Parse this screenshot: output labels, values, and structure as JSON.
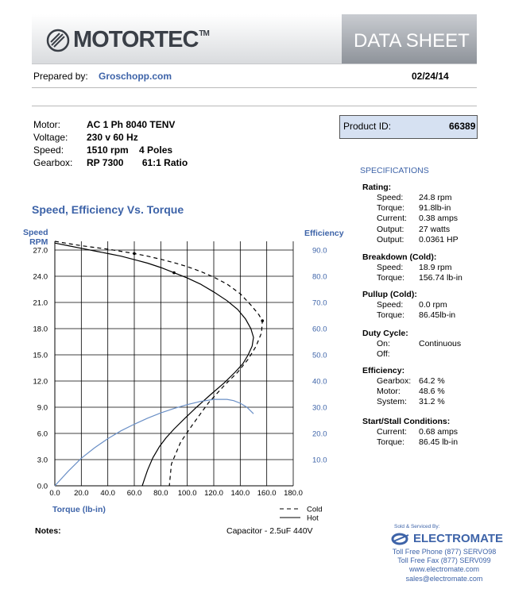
{
  "header": {
    "brand": "MOTORTEC",
    "trademark": "TM",
    "doc_type": "DATA SHEET"
  },
  "prepared": {
    "label": "Prepared by:",
    "value": "Groschopp.com",
    "date": "02/24/14"
  },
  "motor_info": [
    {
      "label": "Motor:",
      "value": "AC 1 Ph  8040 TENV"
    },
    {
      "label": "Voltage:",
      "value": "230 v 60 Hz"
    },
    {
      "label": "Speed:",
      "value": "1510 rpm    4 Poles"
    },
    {
      "label": "Gearbox:",
      "value": "RP 7300       61:1 Ratio"
    }
  ],
  "product": {
    "label": "Product ID:",
    "value": "66389"
  },
  "specs": {
    "title": "SPECIFICATIONS",
    "rating": {
      "heading": "Rating:",
      "rows": [
        {
          "k": "Speed:",
          "v": "24.8 rpm"
        },
        {
          "k": "Torque:",
          "v": "91.8lb-in"
        },
        {
          "k": "Current:",
          "v": "0.38 amps"
        },
        {
          "k": "Output:",
          "v": "27 watts"
        },
        {
          "k": "Output:",
          "v": "0.0361 HP"
        }
      ]
    },
    "breakdown": {
      "heading": "Breakdown (Cold):",
      "rows": [
        {
          "k": "Speed:",
          "v": "18.9 rpm"
        },
        {
          "k": "Torque:",
          "v": "156.74 lb-in"
        }
      ]
    },
    "pullup": {
      "heading": "Pullup (Cold):",
      "rows": [
        {
          "k": "Speed:",
          "v": "0.0 rpm"
        },
        {
          "k": "Torque:",
          "v": "86.45lb-in"
        }
      ]
    },
    "duty": {
      "heading": "Duty Cycle:",
      "rows": [
        {
          "k": "On:",
          "v": "Continuous"
        },
        {
          "k": "Off:",
          "v": ""
        }
      ]
    },
    "efficiency": {
      "heading": "Efficiency:",
      "rows": [
        {
          "k": "Gearbox:",
          "v": "64.2 %"
        },
        {
          "k": "Motor:",
          "v": "48.6 %"
        },
        {
          "k": "System:",
          "v": "31.2 %"
        }
      ]
    },
    "startstall": {
      "heading": "Start/Stall Conditions:",
      "rows": [
        {
          "k": "Current:",
          "v": "0.68 amps"
        },
        {
          "k": "Torque:",
          "v": "86.45 lb-in"
        }
      ]
    }
  },
  "notes": {
    "label": "Notes:",
    "value": "Capacitor - 2.5uF 440V"
  },
  "vendor": {
    "sold_by": "Sold & Serviced By:",
    "name": "ELECTROMATE",
    "lines": [
      "Toll Free Phone  (877) SERVO98",
      "Toll Free Fax  (877) SERV099",
      "www.electromate.com",
      "sales@electromate.com"
    ]
  },
  "chart_data": {
    "type": "line",
    "title": "Speed, Efficiency Vs. Torque",
    "xlabel": "Torque  (lb-in)",
    "ylabel_left": "Speed\nRPM",
    "ylabel_left_lines": [
      "Speed",
      "RPM"
    ],
    "ylabel_right": "Efficiency",
    "xlim": [
      0,
      180
    ],
    "ylim_left": [
      0,
      28
    ],
    "ylim_right": [
      0,
      93.3
    ],
    "x_ticks": [
      "0.0",
      "20.0",
      "40.0",
      "60.0",
      "80.0",
      "100.0",
      "120.0",
      "140.0",
      "160.0",
      "180.0"
    ],
    "y_ticks_left": [
      "0.0",
      "3.0",
      "6.0",
      "9.0",
      "12.0",
      "15.0",
      "18.0",
      "21.0",
      "24.0",
      "27.0"
    ],
    "y_ticks_right": [
      "10.0",
      "20.0",
      "30.0",
      "40.0",
      "50.0",
      "60.0",
      "70.0",
      "80.0",
      "90.0"
    ],
    "grid": true,
    "legend": [
      {
        "name": "Cold",
        "style": "dashed"
      },
      {
        "name": "Hot",
        "style": "solid"
      }
    ],
    "series": [
      {
        "name": "Speed Cold",
        "axis": "left",
        "style": "dashed",
        "color": "#000000",
        "x": [
          0,
          10,
          20,
          30,
          40,
          50,
          60,
          70,
          80,
          90,
          100,
          110,
          120,
          130,
          140,
          148,
          154,
          156.74,
          156,
          152,
          146,
          138,
          128,
          116,
          104,
          95,
          88,
          86.45
        ],
        "y": [
          28.0,
          27.75,
          27.5,
          27.3,
          27.1,
          26.85,
          26.6,
          26.3,
          25.95,
          25.55,
          25.1,
          24.55,
          23.9,
          23.1,
          22.0,
          20.7,
          19.6,
          18.9,
          17.5,
          16.0,
          14.5,
          13.0,
          11.5,
          9.5,
          7.0,
          5.0,
          2.5,
          0.0
        ]
      },
      {
        "name": "Speed Hot",
        "axis": "left",
        "style": "solid",
        "color": "#000000",
        "x": [
          0,
          10,
          20,
          30,
          40,
          50,
          60,
          70,
          80,
          90,
          100,
          110,
          120,
          130,
          138,
          144,
          148,
          150,
          149,
          146,
          142,
          136,
          128,
          118,
          107,
          98,
          90,
          84,
          79,
          74,
          70,
          68,
          66
        ],
        "y": [
          27.8,
          27.5,
          27.2,
          26.9,
          26.6,
          26.3,
          25.9,
          25.5,
          25.0,
          24.4,
          23.8,
          23.1,
          22.2,
          21.2,
          20.2,
          19.1,
          18.0,
          17.0,
          16.0,
          15.0,
          14.0,
          13.0,
          11.8,
          10.5,
          9.0,
          7.7,
          6.5,
          5.5,
          4.5,
          3.2,
          1.8,
          0.9,
          0.0
        ]
      },
      {
        "name": "Efficiency Hot",
        "axis": "right",
        "style": "solid",
        "color": "#6a8fc6",
        "x": [
          0,
          10,
          20,
          30,
          40,
          50,
          60,
          70,
          80,
          90,
          100,
          110,
          120,
          130,
          135,
          140,
          145,
          150
        ],
        "y": [
          0,
          5.5,
          10.5,
          14.5,
          18.0,
          21.0,
          23.5,
          25.8,
          27.8,
          29.5,
          31.0,
          32.2,
          33.0,
          33.0,
          32.5,
          31.5,
          30.0,
          27.5
        ]
      }
    ]
  }
}
